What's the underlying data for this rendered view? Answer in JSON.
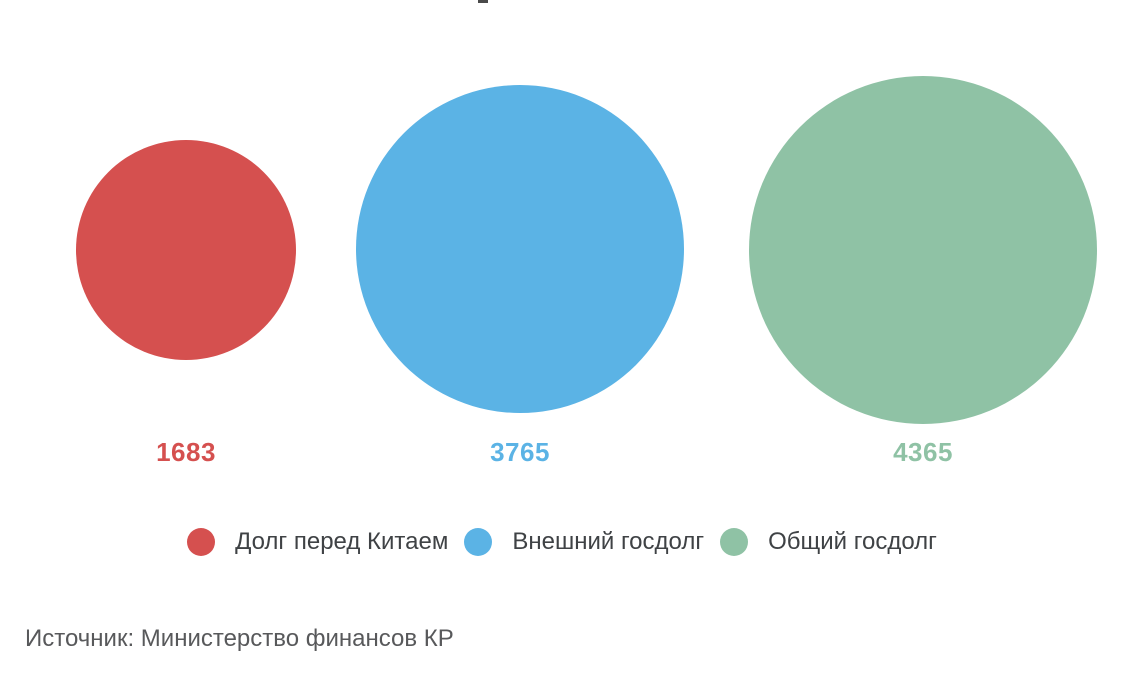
{
  "chart_data": {
    "type": "bubble",
    "sizing": "area-proportional",
    "background": "#ffffff",
    "legend_position": "bottom",
    "series": [
      {
        "name": "Долг перед Китаем",
        "value": 1683,
        "label": "1683",
        "color": "#d5504f"
      },
      {
        "name": "Внешний госдолг",
        "value": 3765,
        "label": "3765",
        "color": "#5bb3e5"
      },
      {
        "name": "Общий госдолг",
        "value": 4365,
        "label": "4365",
        "color": "#8fc2a5"
      }
    ],
    "source": "Источник: Министерство финансов КР"
  },
  "colors": {
    "legend_text": "#3f4245",
    "source_text": "#58595b",
    "clipped_title": "#4a4a4a",
    "background": "#ffffff"
  }
}
